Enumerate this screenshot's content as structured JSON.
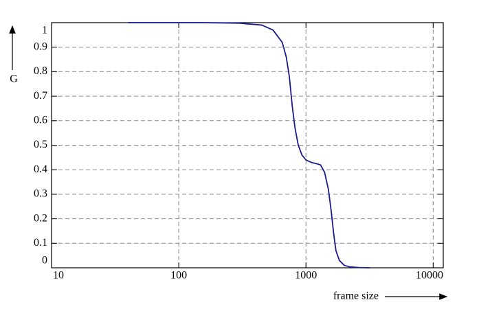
{
  "chart_data": {
    "type": "line",
    "x_label": "frame size",
    "y_label": "G",
    "xscale": "log",
    "grid": true,
    "x": [
      40,
      80,
      150,
      300,
      450,
      550,
      650,
      700,
      740,
      780,
      820,
      870,
      930,
      1000,
      1100,
      1200,
      1300,
      1400,
      1500,
      1580,
      1650,
      1720,
      1830,
      2000,
      2200,
      2600,
      3200
    ],
    "series": [
      {
        "name": "G",
        "color": "#1a1a8c",
        "values": [
          1.0,
          1.0,
          1.0,
          0.998,
          0.99,
          0.97,
          0.92,
          0.86,
          0.78,
          0.66,
          0.57,
          0.5,
          0.46,
          0.44,
          0.43,
          0.425,
          0.42,
          0.39,
          0.32,
          0.23,
          0.14,
          0.07,
          0.03,
          0.01,
          0.004,
          0.001,
          0.0
        ]
      }
    ],
    "xlim": [
      10,
      12000
    ],
    "xticks": [
      10,
      100,
      1000,
      10000
    ],
    "ylim": [
      0,
      1
    ],
    "yticks": [
      0,
      0.1,
      0.2,
      0.3,
      0.4,
      0.5,
      0.6,
      0.7,
      0.8,
      0.9,
      1
    ]
  }
}
